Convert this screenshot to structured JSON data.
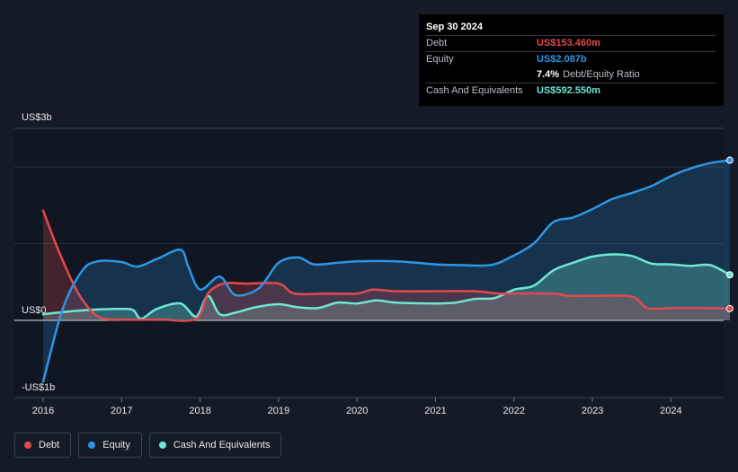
{
  "tooltip": {
    "date": "Sep 30 2024",
    "debt_label": "Debt",
    "debt_value": "US$153.460m",
    "equity_label": "Equity",
    "equity_value": "US$2.087b",
    "ratio_value": "7.4%",
    "ratio_label": "Debt/Equity Ratio",
    "cash_label": "Cash And Equivalents",
    "cash_value": "US$592.550m"
  },
  "legend": {
    "debt": "Debt",
    "equity": "Equity",
    "cash": "Cash And Equivalents"
  },
  "colors": {
    "debt": "#e5484d",
    "equity": "#2d95e6",
    "cash": "#6ee7d3"
  },
  "chart_data": {
    "type": "line",
    "ylim": [
      -1,
      3
    ],
    "y_ticks": [
      {
        "value": 3,
        "label": "US$3b"
      },
      {
        "value": 0,
        "label": "US$0"
      },
      {
        "value": -1,
        "label": "-US$1b"
      }
    ],
    "xlim": [
      2015.83,
      2024.77
    ],
    "x_ticks": [
      2016,
      2017,
      2018,
      2019,
      2020,
      2021,
      2022,
      2023,
      2024
    ],
    "x_tick_labels": [
      "2016",
      "2017",
      "2018",
      "2019",
      "2020",
      "2021",
      "2022",
      "2023",
      "2024"
    ],
    "series": [
      {
        "name": "Debt",
        "key": "debt",
        "x": [
          2016.0,
          2016.2,
          2016.45,
          2016.7,
          2017.0,
          2017.5,
          2017.95,
          2018.1,
          2018.3,
          2018.6,
          2019.0,
          2019.2,
          2019.6,
          2020.0,
          2020.2,
          2020.5,
          2021.0,
          2021.5,
          2021.8,
          2022.0,
          2022.5,
          2022.7,
          2023.0,
          2023.5,
          2023.7,
          2024.0,
          2024.5,
          2024.75
        ],
        "y": [
          1.43,
          0.9,
          0.35,
          0.05,
          0.01,
          0.01,
          0.02,
          0.35,
          0.48,
          0.48,
          0.48,
          0.35,
          0.35,
          0.35,
          0.4,
          0.38,
          0.38,
          0.38,
          0.35,
          0.35,
          0.35,
          0.32,
          0.32,
          0.31,
          0.16,
          0.16,
          0.16,
          0.153
        ]
      },
      {
        "name": "Equity",
        "key": "equity",
        "x": [
          2016.0,
          2016.25,
          2016.5,
          2016.7,
          2017.0,
          2017.2,
          2017.45,
          2017.75,
          2017.85,
          2018.0,
          2018.25,
          2018.45,
          2018.75,
          2019.0,
          2019.25,
          2019.45,
          2019.75,
          2020.0,
          2020.5,
          2021.0,
          2021.3,
          2021.7,
          2021.95,
          2022.25,
          2022.5,
          2022.75,
          2023.0,
          2023.25,
          2023.5,
          2023.75,
          2024.0,
          2024.25,
          2024.5,
          2024.75
        ],
        "y": [
          -0.8,
          0.15,
          0.65,
          0.77,
          0.76,
          0.7,
          0.8,
          0.92,
          0.7,
          0.4,
          0.57,
          0.33,
          0.42,
          0.75,
          0.82,
          0.73,
          0.75,
          0.77,
          0.77,
          0.73,
          0.72,
          0.72,
          0.82,
          1.0,
          1.28,
          1.34,
          1.45,
          1.58,
          1.66,
          1.75,
          1.88,
          1.98,
          2.05,
          2.087
        ]
      },
      {
        "name": "Cash And Equivalents",
        "key": "cash",
        "x": [
          2016.0,
          2016.5,
          2017.0,
          2017.15,
          2017.25,
          2017.45,
          2017.75,
          2017.95,
          2018.1,
          2018.25,
          2018.45,
          2018.7,
          2019.0,
          2019.25,
          2019.5,
          2019.75,
          2020.0,
          2020.25,
          2020.5,
          2021.0,
          2021.25,
          2021.5,
          2021.75,
          2022.0,
          2022.25,
          2022.5,
          2022.75,
          2023.0,
          2023.25,
          2023.5,
          2023.75,
          2024.0,
          2024.25,
          2024.5,
          2024.75
        ],
        "y": [
          0.08,
          0.13,
          0.15,
          0.13,
          0.02,
          0.15,
          0.22,
          0.05,
          0.32,
          0.08,
          0.1,
          0.17,
          0.21,
          0.17,
          0.16,
          0.23,
          0.22,
          0.26,
          0.23,
          0.22,
          0.23,
          0.28,
          0.29,
          0.4,
          0.45,
          0.65,
          0.75,
          0.83,
          0.86,
          0.84,
          0.74,
          0.73,
          0.71,
          0.72,
          0.593
        ]
      }
    ]
  }
}
